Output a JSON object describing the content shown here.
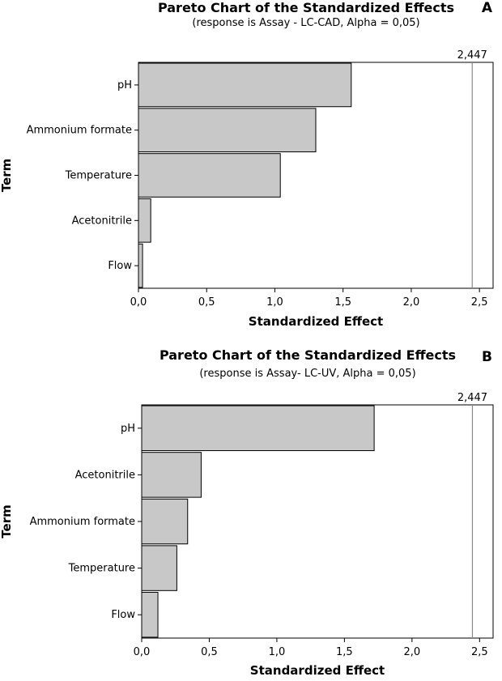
{
  "chart_data": [
    {
      "type": "bar",
      "orientation": "horizontal",
      "panel_label": "A",
      "title": "Pareto Chart of the Standardized Effects",
      "subtitle": "(response is Assay - LC-CAD, Alpha = 0,05)",
      "xlabel": "Standardized Effect",
      "ylabel": "Term",
      "categories": [
        "pH",
        "Ammonium formate",
        "Temperature",
        "Acetonitrile",
        "Flow"
      ],
      "values": [
        1.56,
        1.3,
        1.04,
        0.09,
        0.03
      ],
      "xlim": [
        0,
        2.6
      ],
      "xticks": [
        0,
        0.5,
        1.0,
        1.5,
        2.0,
        2.5
      ],
      "xtick_labels": [
        "0,0",
        "0,5",
        "1,0",
        "1,5",
        "2,0",
        "2,5"
      ],
      "reference_line": 2.447,
      "reference_label": "2,447",
      "bar_color": "#c8c8c8"
    },
    {
      "type": "bar",
      "orientation": "horizontal",
      "panel_label": "B",
      "title": "Pareto Chart of the Standardized Effects",
      "subtitle": "(response is Assay- LC-UV, Alpha = 0,05)",
      "xlabel": "Standardized Effect",
      "ylabel": "Term",
      "categories": [
        "pH",
        "Acetonitrile",
        "Ammonium formate",
        "Temperature",
        "Flow"
      ],
      "values": [
        1.72,
        0.44,
        0.34,
        0.26,
        0.12
      ],
      "xlim": [
        0,
        2.6
      ],
      "xticks": [
        0,
        0.5,
        1.0,
        1.5,
        2.0,
        2.5
      ],
      "xtick_labels": [
        "0,0",
        "0,5",
        "1,0",
        "1,5",
        "2,0",
        "2,5"
      ],
      "reference_line": 2.447,
      "reference_label": "2,447",
      "bar_color": "#c8c8c8"
    }
  ]
}
